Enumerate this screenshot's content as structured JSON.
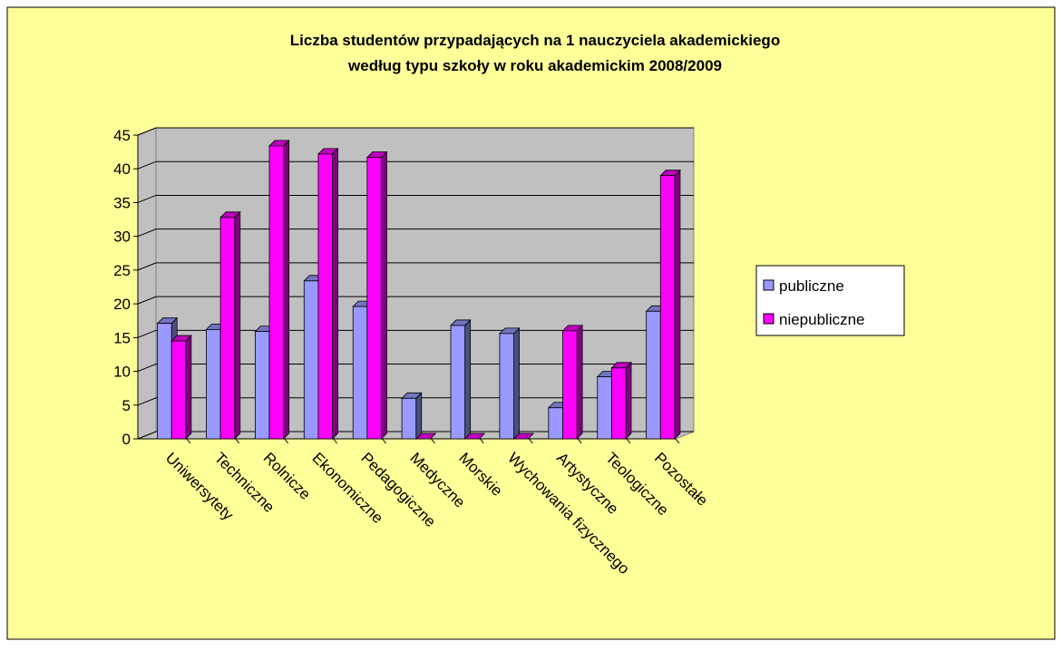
{
  "chart_data": {
    "type": "bar3d",
    "title": [
      "Liczba studentów przypadających na 1 nauczyciela akademickiego",
      "według typu szkoły w roku akademickim 2008/2009"
    ],
    "categories": [
      "Uniwersytety",
      "Techniczne",
      "Rolnicze",
      "Ekonomiczne",
      "Pedagogiczne",
      "Medyczne",
      "Morskie",
      "Wychowania fizycznego",
      "Artystyczne",
      "Teologiczne",
      "Pozostałe"
    ],
    "series": [
      {
        "name": "publiczne",
        "color": "#9999ff",
        "values": [
          17.1,
          16.2,
          15.9,
          23.4,
          19.6,
          6.0,
          16.8,
          15.6,
          4.6,
          9.2,
          18.9
        ]
      },
      {
        "name": "niepubliczne",
        "color": "#ff00ff",
        "values": [
          14.5,
          32.8,
          43.4,
          42.2,
          41.7,
          0,
          0,
          0,
          16.0,
          10.5,
          39.0
        ]
      }
    ],
    "ylim": [
      0,
      45
    ],
    "yticks": [
      0,
      5,
      10,
      15,
      20,
      25,
      30,
      35,
      40,
      45
    ],
    "grid": true,
    "legend": "right"
  }
}
